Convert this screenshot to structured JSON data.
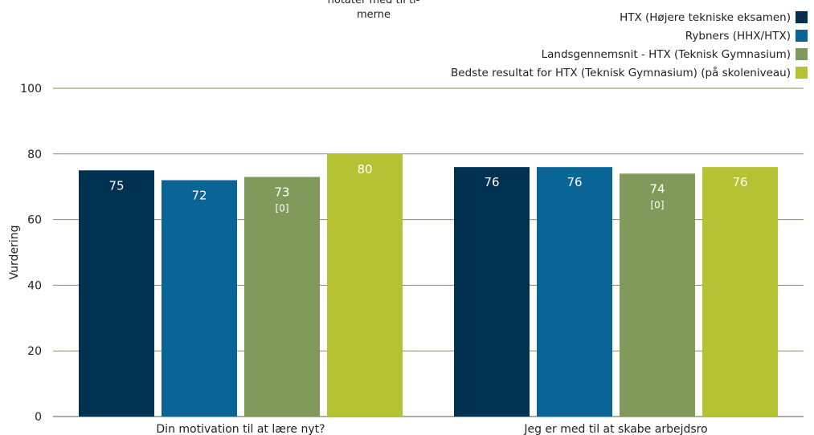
{
  "chart_data": {
    "type": "bar",
    "title": "notater med til ti- merne",
    "title_lines": [
      "notater med til ti-",
      "merne"
    ],
    "categories": [
      "Din motivation til at lære nyt?",
      "Jeg er med til at skabe arbejdsro"
    ],
    "series": [
      {
        "name": "HTX (Højere tekniske eksamen)",
        "color": "#003150",
        "values": [
          75,
          76
        ],
        "labels": [
          "75",
          "76"
        ],
        "sublabels": [
          "",
          ""
        ]
      },
      {
        "name": "Rybners (HHX/HTX)",
        "color": "#0a6597",
        "values": [
          72,
          76
        ],
        "labels": [
          "72",
          "76"
        ],
        "sublabels": [
          "",
          ""
        ]
      },
      {
        "name": "Landsgennemsnit - HTX (Teknisk Gymnasium)",
        "color": "#7f9a5a",
        "values": [
          73,
          74
        ],
        "labels": [
          "73",
          "74"
        ],
        "sublabels": [
          "[0]",
          "[0]"
        ]
      },
      {
        "name": "Bedste resultat for HTX (Teknisk Gymnasium) (på skoleniveau)",
        "color": "#b4c234",
        "values": [
          80,
          76
        ],
        "labels": [
          "80",
          "76"
        ],
        "sublabels": [
          "",
          ""
        ]
      }
    ],
    "xlabel": "",
    "ylabel": "Vurdering",
    "ylim": [
      0,
      100
    ],
    "yticks": [
      0,
      20,
      40,
      60,
      80,
      100
    ],
    "grid": true,
    "legend_position": "top-right"
  }
}
